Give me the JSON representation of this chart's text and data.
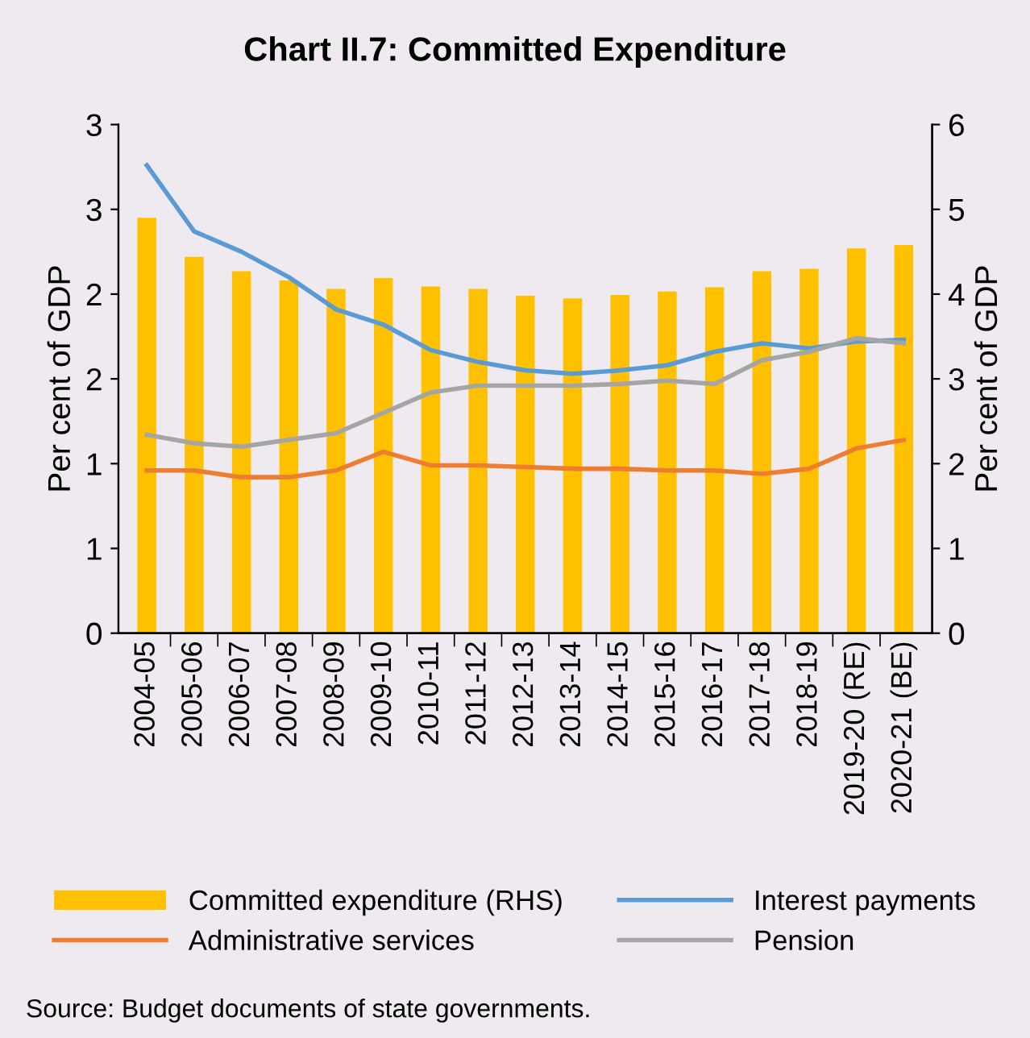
{
  "chart_data": {
    "type": "bar",
    "title": "Chart II.7: Committed Expenditure",
    "categories": [
      "2004-05",
      "2005-06",
      "2006-07",
      "2007-08",
      "2008-09",
      "2009-10",
      "2010-11",
      "2011-12",
      "2012-13",
      "2013-14",
      "2014-15",
      "2015-16",
      "2016-17",
      "2017-18",
      "2018-19",
      "2019-20 (RE)",
      "2020-21 (BE)"
    ],
    "series": [
      {
        "name": "Committed expenditure (RHS)",
        "axis": "y2",
        "color": "#ffc000",
        "values": [
          4.9,
          4.44,
          4.27,
          4.16,
          4.06,
          4.19,
          4.09,
          4.06,
          3.98,
          3.95,
          3.99,
          4.03,
          4.08,
          4.27,
          4.3,
          4.54,
          4.58
        ]
      },
      {
        "name": "Interest payments",
        "type": "line",
        "color": "#5b9bd5",
        "values": [
          2.76,
          2.37,
          2.25,
          2.1,
          1.91,
          1.82,
          1.67,
          1.6,
          1.55,
          1.53,
          1.55,
          1.58,
          1.66,
          1.71,
          1.68,
          1.72,
          1.73
        ]
      },
      {
        "name": "Administrative services",
        "type": "line",
        "color": "#ed7d31",
        "values": [
          0.96,
          0.96,
          0.92,
          0.92,
          0.96,
          1.07,
          0.99,
          0.99,
          0.98,
          0.97,
          0.97,
          0.96,
          0.96,
          0.94,
          0.97,
          1.09,
          1.14
        ]
      },
      {
        "name": "Pension",
        "type": "line",
        "color": "#a5a5a5",
        "values": [
          1.17,
          1.12,
          1.1,
          1.14,
          1.18,
          1.3,
          1.42,
          1.46,
          1.46,
          1.46,
          1.47,
          1.49,
          1.47,
          1.61,
          1.66,
          1.74,
          1.71
        ]
      }
    ],
    "ylabel": "Per cent of GDP",
    "y2label": "Per cent of GDP",
    "ylim": [
      0,
      3
    ],
    "yticks": [
      0,
      {
        "value": 0.5,
        "label": "1"
      },
      1,
      {
        "value": 1.5,
        "label": "2"
      },
      2,
      {
        "value": 2.5,
        "label": "3"
      },
      3
    ],
    "y2lim": [
      0,
      6
    ],
    "y2ticks": [
      0,
      1,
      2,
      3,
      4,
      5,
      6
    ],
    "legend": "bottom",
    "line_style": "solid",
    "marker": "none",
    "annotations": [
      "Source: Budget documents of state governments."
    ]
  }
}
